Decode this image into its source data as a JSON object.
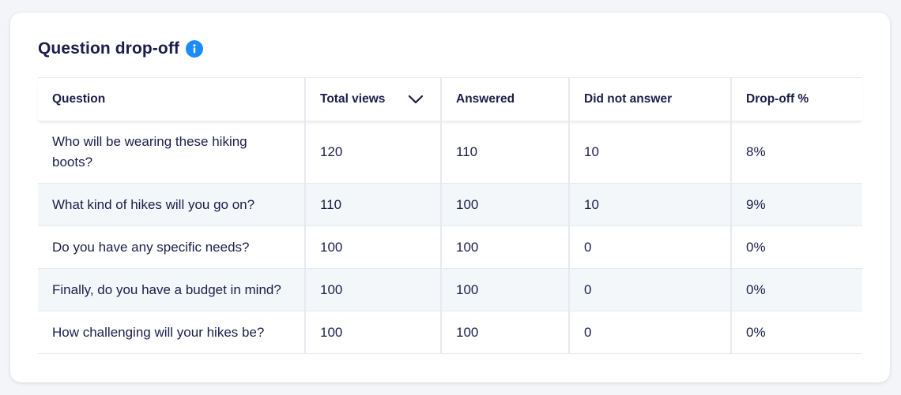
{
  "card": {
    "title": "Question drop-off",
    "info_icon": "info-icon",
    "accent_color": "#1a8cff"
  },
  "table": {
    "columns": [
      {
        "label": "Question"
      },
      {
        "label": "Total views",
        "sort_icon": "chevron-down-icon",
        "sorted": "descending"
      },
      {
        "label": "Answered"
      },
      {
        "label": "Did not answer"
      },
      {
        "label": "Drop-off %"
      }
    ],
    "rows": [
      {
        "question": "Who will be wearing these hiking boots?",
        "total_views": "120",
        "answered": "110",
        "did_not_answer": "10",
        "drop_off": "8%"
      },
      {
        "question": "What kind of hikes will you go on?",
        "total_views": "110",
        "answered": "100",
        "did_not_answer": "10",
        "drop_off": "9%"
      },
      {
        "question": "Do you have any specific needs?",
        "total_views": "100",
        "answered": "100",
        "did_not_answer": "0",
        "drop_off": "0%"
      },
      {
        "question": "Finally, do you have a budget in mind?",
        "total_views": "100",
        "answered": "100",
        "did_not_answer": "0",
        "drop_off": "0%"
      },
      {
        "question": "How challenging will your hikes be?",
        "total_views": "100",
        "answered": "100",
        "did_not_answer": "0",
        "drop_off": "0%"
      }
    ]
  }
}
